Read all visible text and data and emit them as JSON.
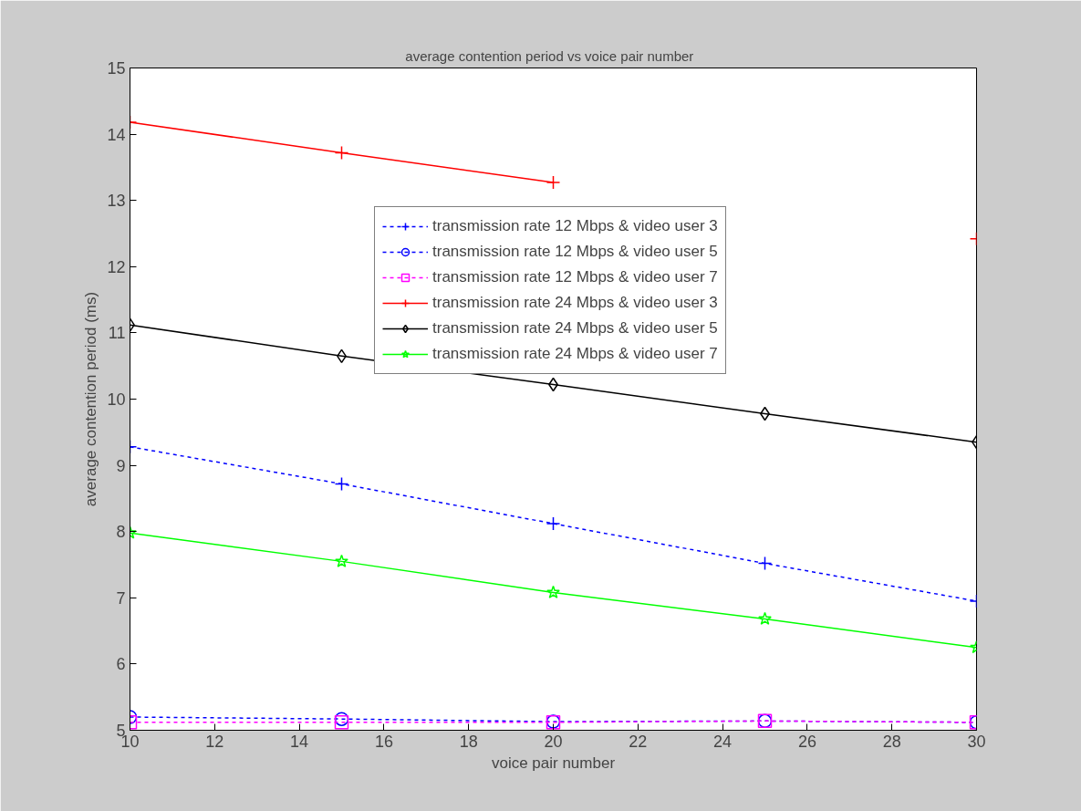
{
  "chart_data": {
    "type": "line",
    "title": "average contention period  vs  voice pair number",
    "xlabel": "voice pair number",
    "ylabel": "average contention period (ms)",
    "x": [
      10,
      15,
      20,
      25,
      30
    ],
    "series": [
      {
        "name": "transmission rate 12 Mbps & video user 3",
        "color": "#0000ff",
        "marker": "cross",
        "line_style": "dashed",
        "values": [
          9.28,
          8.72,
          8.12,
          7.52,
          6.95
        ]
      },
      {
        "name": "transmission rate 12 Mbps & video user 5",
        "color": "#0000ff",
        "marker": "circle",
        "line_style": "dashed",
        "values": [
          5.2,
          5.17,
          5.13,
          5.14,
          5.12
        ]
      },
      {
        "name": "transmission rate 12 Mbps & video user 7",
        "color": "#ff00ff",
        "marker": "square",
        "line_style": "dashed",
        "values": [
          5.12,
          5.12,
          5.12,
          5.14,
          5.12
        ]
      },
      {
        "name": "transmission rate 24 Mbps & video user 3",
        "color": "#ff0000",
        "marker": "cross",
        "line_style": "solid",
        "values": [
          14.18,
          13.72,
          13.27,
          null,
          12.42
        ]
      },
      {
        "name": "transmission rate 24 Mbps & video user 5",
        "color": "#000000",
        "marker": "diamond",
        "line_style": "solid",
        "values": [
          11.12,
          10.65,
          10.22,
          9.78,
          9.35
        ]
      },
      {
        "name": "transmission rate 24 Mbps & video user 7",
        "color": "#00ff00",
        "marker": "star",
        "line_style": "solid",
        "values": [
          7.98,
          7.55,
          7.08,
          6.68,
          6.25
        ]
      }
    ],
    "xlim": [
      10,
      30
    ],
    "ylim": [
      5,
      15
    ],
    "xticks": [
      10,
      12,
      14,
      16,
      18,
      20,
      22,
      24,
      26,
      28,
      30
    ],
    "yticks": [
      5,
      6,
      7,
      8,
      9,
      10,
      11,
      12,
      13,
      14,
      15
    ],
    "grid": false,
    "legend": "center"
  }
}
